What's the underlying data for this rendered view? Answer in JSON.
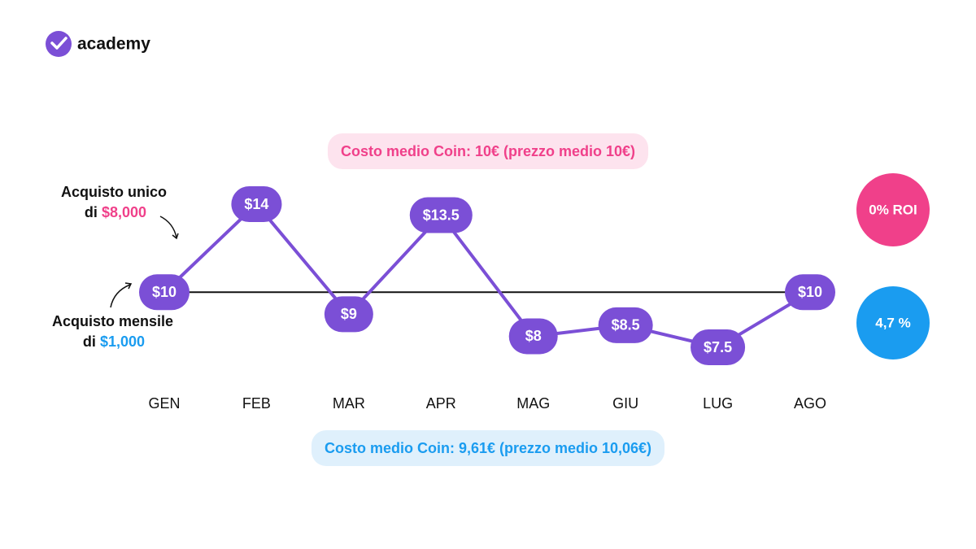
{
  "brand": "academy",
  "chart_data": {
    "type": "line",
    "categories": [
      "GEN",
      "FEB",
      "MAR",
      "APR",
      "MAG",
      "GIU",
      "LUG",
      "AGO"
    ],
    "series": [
      {
        "color": "#7b4fd6",
        "values": [
          10,
          14,
          9,
          13.5,
          8,
          8.5,
          7.5,
          10
        ],
        "value_labels": [
          "$10",
          "$14",
          "$9",
          "$13.5",
          "$8",
          "$8.5",
          "$7.5",
          "$10"
        ]
      }
    ],
    "annotations": {
      "lump_sum": {
        "label": "Acquisto unico",
        "prefix": "di",
        "amount": "$8,000",
        "summary": "Costo medio Coin: 10€ (prezzo medio 10€)",
        "roi": "0% ROI",
        "color": "#f0408a",
        "background": "#fde3ee"
      },
      "monthly": {
        "label": "Acquisto mensile",
        "prefix": "di",
        "amount": "$1,000",
        "summary": "Costo medio Coin: 9,61€ (prezzo medio 10,06€)",
        "roi": "4,7 %",
        "color": "#1a9cf0",
        "background": "#dff0fc"
      }
    }
  }
}
